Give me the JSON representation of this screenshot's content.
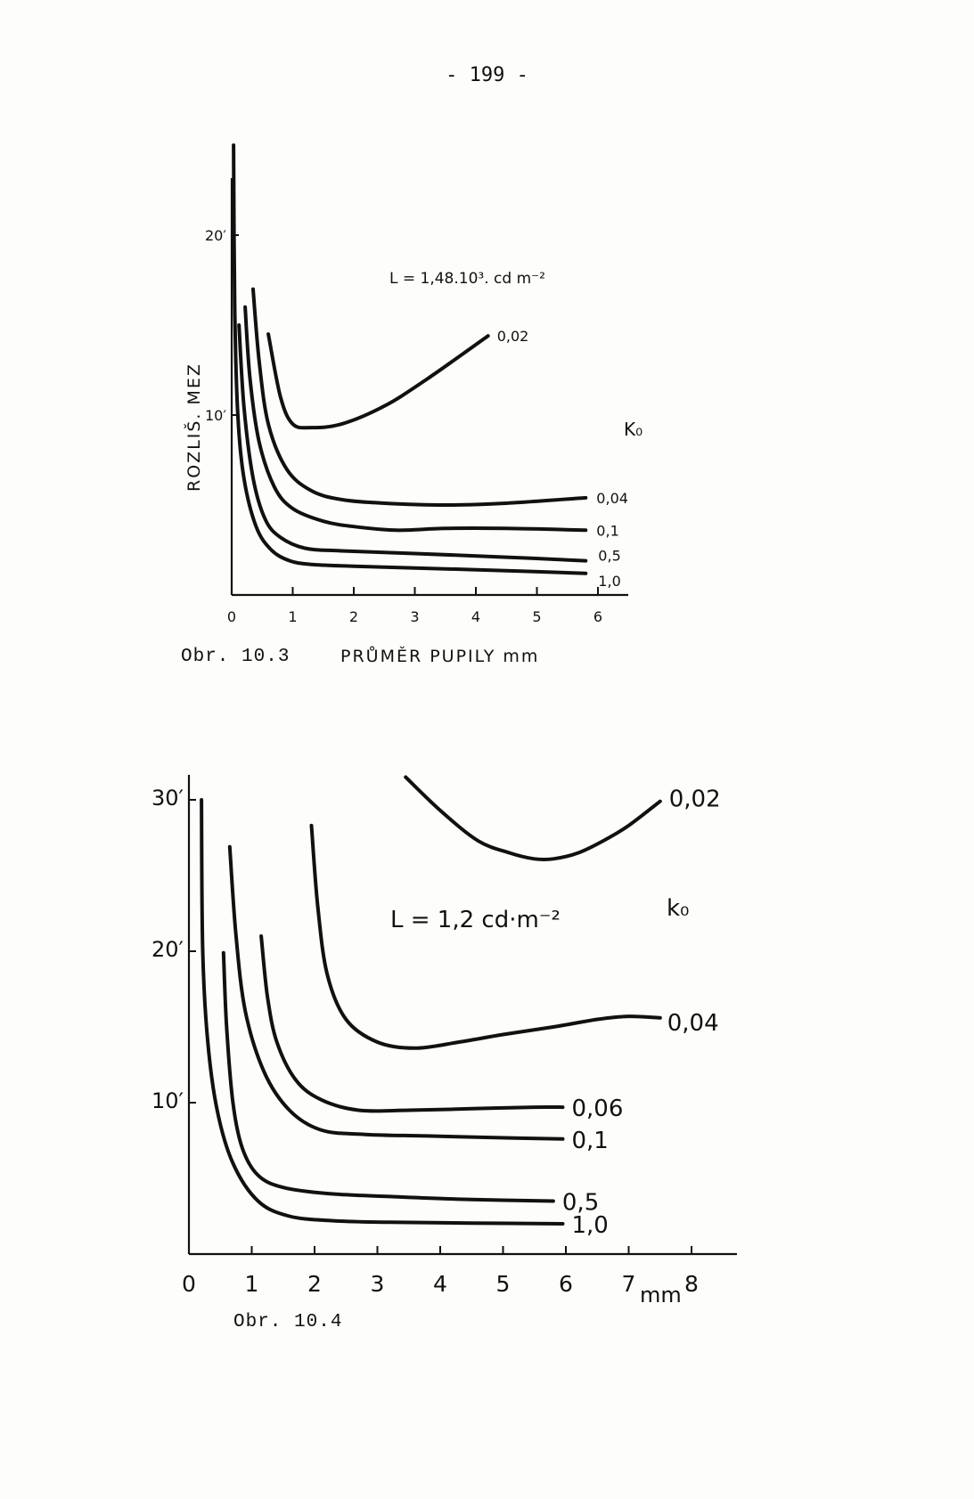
{
  "page_number": "- 199 -",
  "chart_data": [
    {
      "type": "line",
      "caption": "Obr. 10.3",
      "xlabel": "PRŮMĚR PUPILY mm",
      "ylabel": "ROZLIŠ. MEZ",
      "annotation": "L = 1,48.10³. cd m⁻²",
      "legend_title": "K₀",
      "x_ticks": [
        "0",
        "1",
        "2",
        "3",
        "4",
        "5",
        "6"
      ],
      "y_ticks": [
        "10′",
        "20′"
      ],
      "xlim": [
        0,
        6
      ],
      "ylim": [
        0,
        25
      ],
      "series": [
        {
          "name": "0,02",
          "x": [
            0.6,
            0.8,
            1.0,
            1.3,
            1.8,
            2.5,
            3.2,
            4.2
          ],
          "y": [
            14.5,
            11,
            9.5,
            9.3,
            9.5,
            10.5,
            12,
            14.4
          ]
        },
        {
          "name": "0,04",
          "x": [
            0.35,
            0.45,
            0.6,
            0.9,
            1.3,
            1.8,
            2.5,
            3.5,
            4.5,
            5.8
          ],
          "y": [
            17,
            13,
            9.5,
            7,
            5.8,
            5.3,
            5.1,
            5.0,
            5.1,
            5.4
          ]
        },
        {
          "name": "0,1",
          "x": [
            0.22,
            0.3,
            0.45,
            0.7,
            1.0,
            1.5,
            2.0,
            2.7,
            3.5,
            4.5,
            5.8
          ],
          "y": [
            16,
            12,
            8.5,
            6,
            4.8,
            4.1,
            3.8,
            3.6,
            3.7,
            3.7,
            3.6
          ]
        },
        {
          "name": "0,5",
          "x": [
            0.12,
            0.2,
            0.35,
            0.55,
            0.8,
            1.2,
            1.8,
            3.0,
            4.5,
            5.8
          ],
          "y": [
            15,
            10.5,
            6.5,
            4.2,
            3.2,
            2.6,
            2.45,
            2.3,
            2.1,
            1.9
          ]
        },
        {
          "name": "1,0",
          "x": [
            0.03,
            0.05,
            0.1,
            0.2,
            0.4,
            0.65,
            0.95,
            1.3,
            2.0,
            3.0,
            4.5,
            5.8
          ],
          "y": [
            25,
            16,
            10,
            6.5,
            3.8,
            2.5,
            1.9,
            1.7,
            1.6,
            1.5,
            1.35,
            1.2
          ]
        }
      ]
    },
    {
      "type": "line",
      "caption": "Obr. 10.4",
      "xlabel": "mm",
      "annotation": "L = 1,2 cd·m⁻²",
      "legend_title": "k₀",
      "x_ticks": [
        "0",
        "1",
        "2",
        "3",
        "4",
        "5",
        "6",
        "7",
        "8"
      ],
      "y_ticks": [
        "10′",
        "20′",
        "30′"
      ],
      "xlim": [
        0,
        8.5
      ],
      "ylim": [
        0,
        30
      ],
      "series": [
        {
          "name": "0,02",
          "x": [
            3.45,
            4.0,
            4.6,
            5.1,
            5.5,
            5.8,
            6.2,
            6.6,
            7.0,
            7.5
          ],
          "y": [
            31.5,
            29.3,
            27.3,
            26.5,
            26.1,
            26.1,
            26.5,
            27.3,
            28.3,
            29.9
          ]
        },
        {
          "name": "0,04",
          "x": [
            1.95,
            2.05,
            2.2,
            2.5,
            3.0,
            3.6,
            4.3,
            5.0,
            5.8,
            6.5,
            7.0,
            7.5
          ],
          "y": [
            28.3,
            23,
            18.5,
            15.5,
            14,
            13.6,
            14,
            14.5,
            15,
            15.5,
            15.7,
            15.6
          ]
        },
        {
          "name": "0,06",
          "x": [
            1.15,
            1.25,
            1.4,
            1.7,
            2.1,
            2.7,
            3.5,
            4.5,
            5.5,
            5.95
          ],
          "y": [
            21,
            17,
            14,
            11.5,
            10.2,
            9.5,
            9.5,
            9.6,
            9.7,
            9.7
          ]
        },
        {
          "name": "0,1",
          "x": [
            0.65,
            0.75,
            0.9,
            1.2,
            1.6,
            2.1,
            2.8,
            3.8,
            4.8,
            5.95
          ],
          "y": [
            26.9,
            21,
            16,
            12,
            9.5,
            8.2,
            7.9,
            7.8,
            7.7,
            7.6
          ]
        },
        {
          "name": "0,5",
          "x": [
            0.55,
            0.6,
            0.7,
            0.85,
            1.1,
            1.5,
            2.2,
            3.2,
            4.5,
            5.8
          ],
          "y": [
            19.9,
            15,
            10,
            7,
            5.2,
            4.4,
            4.0,
            3.8,
            3.6,
            3.5
          ]
        },
        {
          "name": "1,0",
          "x": [
            0.2,
            0.22,
            0.3,
            0.45,
            0.7,
            1.1,
            1.6,
            2.3,
            3.2,
            4.5,
            5.95
          ],
          "y": [
            30,
            20,
            14,
            9.5,
            6,
            3.5,
            2.5,
            2.2,
            2.1,
            2.05,
            2.0
          ]
        }
      ]
    }
  ]
}
